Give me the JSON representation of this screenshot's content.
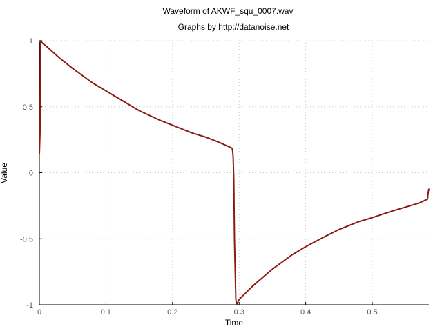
{
  "chart_data": {
    "type": "line",
    "title": "Waveform of AKWF_squ_0007.wav",
    "subtitle": "Graphs by http://datanoise.net",
    "xlabel": "Time",
    "ylabel": "Value",
    "xlim": [
      0,
      0.585
    ],
    "ylim": [
      -1,
      1
    ],
    "x_ticks": [
      0,
      0.1,
      0.2,
      0.3,
      0.4,
      0.5
    ],
    "x_tick_labels": [
      "0",
      "0.1",
      "0.2",
      "0.3",
      "0.4",
      "0.5"
    ],
    "y_ticks": [
      1,
      0.5,
      0,
      -0.5,
      -1
    ],
    "y_tick_labels": [
      "1",
      "0.5",
      "0",
      "-0.5",
      "-1"
    ],
    "grid": true,
    "line_color": "#8b1a10",
    "series": [
      {
        "x": [
          0,
          0.001,
          0.0015,
          0.002,
          0.005,
          0.01,
          0.03,
          0.05,
          0.08,
          0.1,
          0.13,
          0.15,
          0.18,
          0.2,
          0.23,
          0.25,
          0.27,
          0.288,
          0.29,
          0.291,
          0.292,
          0.293,
          0.295,
          0.296,
          0.297,
          0.3,
          0.32,
          0.35,
          0.38,
          0.4,
          0.43,
          0.45,
          0.48,
          0.5,
          0.53,
          0.55,
          0.57,
          0.583,
          0.584,
          0.585
        ],
        "y": [
          0.14,
          0.3,
          0.98,
          1.0,
          0.98,
          0.96,
          0.87,
          0.79,
          0.68,
          0.62,
          0.53,
          0.47,
          0.4,
          0.36,
          0.3,
          0.27,
          0.23,
          0.19,
          0.18,
          0.12,
          -0.05,
          -0.5,
          -0.95,
          -1.0,
          -0.99,
          -0.96,
          -0.86,
          -0.73,
          -0.62,
          -0.56,
          -0.48,
          -0.43,
          -0.37,
          -0.34,
          -0.29,
          -0.26,
          -0.23,
          -0.2,
          -0.15,
          -0.12
        ]
      }
    ]
  }
}
